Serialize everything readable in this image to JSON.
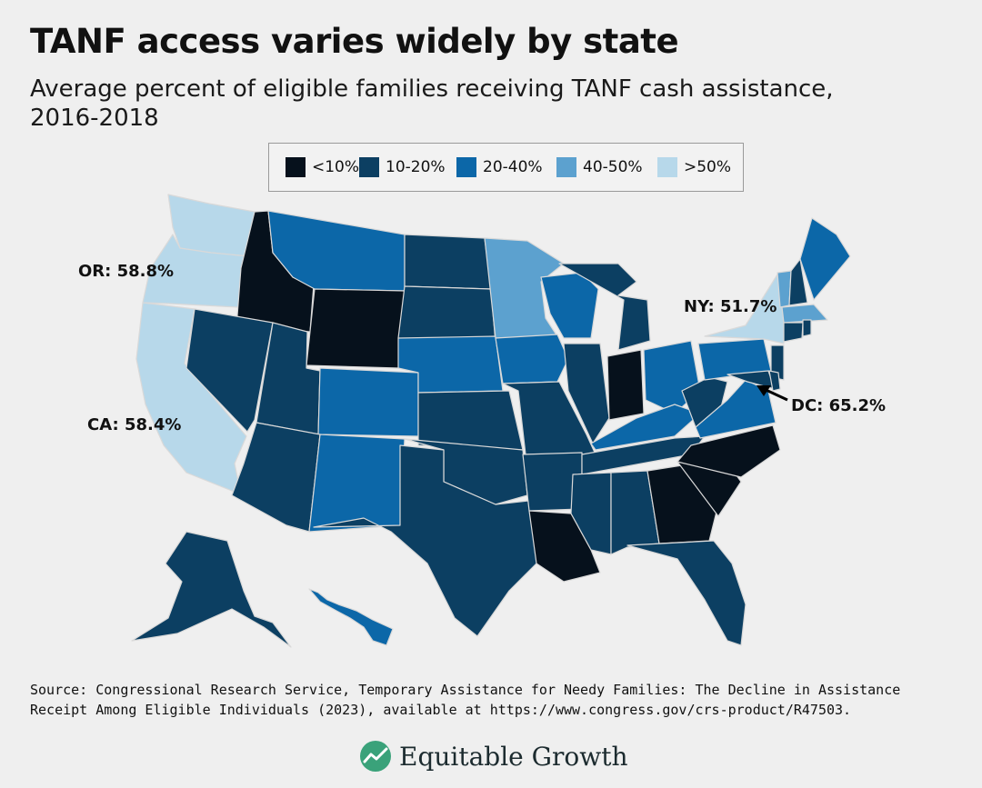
{
  "title": "TANF access varies widely by state",
  "subtitle": "Average percent of eligible families receiving TANF cash assistance, 2016-2018",
  "legend": [
    {
      "label": "<10%",
      "color": "#06111c"
    },
    {
      "label": "10-20%",
      "color": "#0c3f62"
    },
    {
      "label": "20-40%",
      "color": "#0c67a8"
    },
    {
      "label": "40-50%",
      "color": "#5ca1cf"
    },
    {
      "label": ">50%",
      "color": "#b7d8ea"
    }
  ],
  "callouts": {
    "or": "OR: 58.8%",
    "ca": "CA: 58.4%",
    "ny": "NY: 51.7%",
    "dc": "DC: 65.2%"
  },
  "states": {
    "WA": ">50%",
    "OR": ">50%",
    "CA": ">50%",
    "NY": ">50%",
    "MN": "40-50%",
    "VT": "40-50%",
    "MA": "40-50%",
    "ID": "<10%",
    "WY": "<10%",
    "IN": "<10%",
    "NC": "<10%",
    "SC": "<10%",
    "GA": "<10%",
    "LA": "<10%",
    "MT": "20-40%",
    "CO": "20-40%",
    "NM": "20-40%",
    "NE": "20-40%",
    "IA": "20-40%",
    "WI": "20-40%",
    "OH": "20-40%",
    "PA": "20-40%",
    "VA": "20-40%",
    "KY": "20-40%",
    "ME": "20-40%",
    "HI": "20-40%",
    "NV": "10-20%",
    "UT": "10-20%",
    "AZ": "10-20%",
    "ND": "10-20%",
    "SD": "10-20%",
    "KS": "10-20%",
    "OK": "10-20%",
    "TX": "10-20%",
    "MO": "10-20%",
    "AR": "10-20%",
    "IL": "10-20%",
    "MI": "10-20%",
    "TN": "10-20%",
    "MS": "10-20%",
    "AL": "10-20%",
    "FL": "10-20%",
    "WV": "10-20%",
    "AK": "10-20%",
    "NH": "10-20%",
    "NJ": "10-20%",
    "MD": "10-20%",
    "DE": "10-20%",
    "CT": "10-20%",
    "RI": "10-20%"
  },
  "source": "Source: Congressional Research Service, Temporary Assistance for Needy Families: The Decline in Assistance Receipt Among Eligible Individuals (2023), available at https://www.congress.gov/crs-product/R47503.",
  "brand": "Equitable Growth",
  "brand_logo": "equitable-growth-logo"
}
